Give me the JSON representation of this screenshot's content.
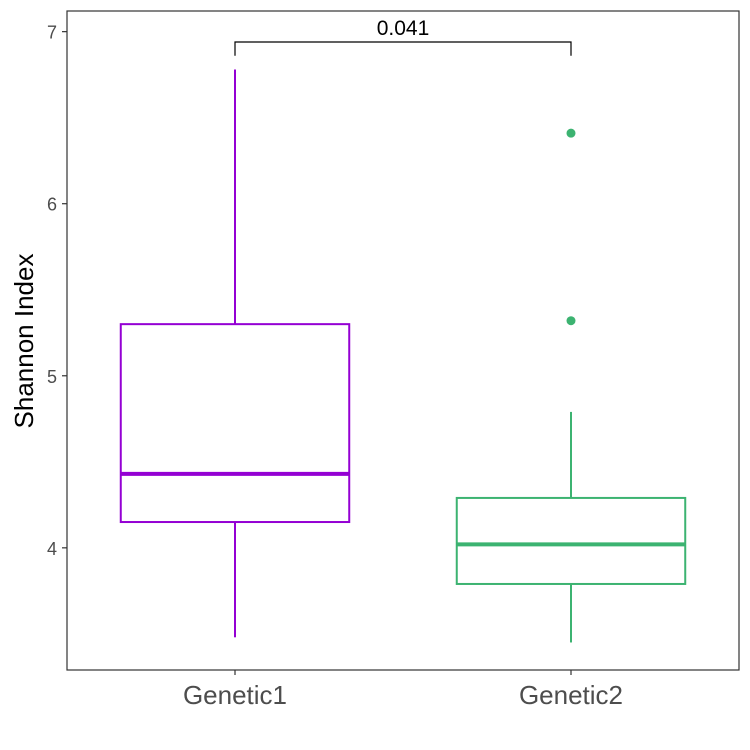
{
  "chart_data": {
    "type": "box",
    "title": "",
    "xlabel": "",
    "ylabel": "Shannon Index",
    "ylim": [
      3.29,
      7.12
    ],
    "yticks": [
      4,
      5,
      6,
      7
    ],
    "grid": false,
    "legend": "none",
    "categories": [
      "Genetic1",
      "Genetic2"
    ],
    "boxes": [
      {
        "category": "Genetic1",
        "color": "#9400D3",
        "whisker_low": 3.48,
        "q1": 4.15,
        "median": 4.43,
        "q3": 5.3,
        "whisker_high": 6.78,
        "outliers": []
      },
      {
        "category": "Genetic2",
        "color": "#3CB371",
        "whisker_low": 3.45,
        "q1": 3.79,
        "median": 4.02,
        "q3": 4.29,
        "whisker_high": 4.79,
        "outliers": [
          5.32,
          6.41
        ]
      }
    ],
    "comparison": {
      "from": "Genetic1",
      "to": "Genetic2",
      "label": "0.041",
      "bracket_y": 6.94,
      "tip_low": 6.86
    }
  }
}
